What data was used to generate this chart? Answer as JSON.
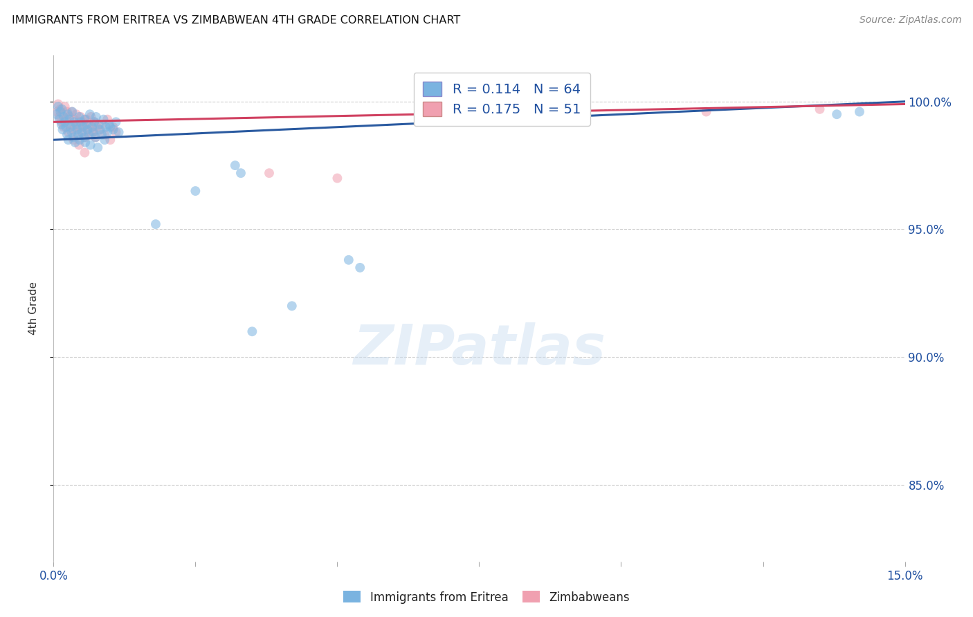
{
  "title": "IMMIGRANTS FROM ERITREA VS ZIMBABWEAN 4TH GRADE CORRELATION CHART",
  "source": "Source: ZipAtlas.com",
  "ylabel": "4th Grade",
  "ytick_values": [
    85.0,
    90.0,
    95.0,
    100.0
  ],
  "xlim": [
    0.0,
    15.0
  ],
  "ylim": [
    82.0,
    101.8
  ],
  "legend1_label": "Immigrants from Eritrea",
  "legend2_label": "Zimbabweans",
  "R_blue": 0.114,
  "N_blue": 64,
  "R_pink": 0.175,
  "N_pink": 51,
  "blue_color": "#7ab3e0",
  "pink_color": "#f0a0b0",
  "blue_line_color": "#2a5aa0",
  "pink_line_color": "#d04060",
  "marker_size": 100,
  "blue_scatter_x": [
    0.05,
    0.08,
    0.1,
    0.12,
    0.14,
    0.15,
    0.16,
    0.18,
    0.2,
    0.22,
    0.24,
    0.25,
    0.26,
    0.28,
    0.3,
    0.32,
    0.33,
    0.35,
    0.36,
    0.38,
    0.4,
    0.42,
    0.44,
    0.45,
    0.46,
    0.48,
    0.5,
    0.52,
    0.54,
    0.55,
    0.56,
    0.58,
    0.6,
    0.62,
    0.64,
    0.65,
    0.68,
    0.7,
    0.72,
    0.74,
    0.75,
    0.78,
    0.8,
    0.82,
    0.85,
    0.88,
    0.9,
    0.92,
    0.95,
    0.98,
    1.0,
    1.05,
    1.1,
    1.15,
    3.2,
    3.3,
    5.2,
    5.4,
    13.8,
    14.2,
    1.8,
    2.5,
    3.5,
    4.2
  ],
  "blue_scatter_y": [
    99.5,
    99.8,
    99.3,
    99.6,
    99.1,
    99.7,
    98.9,
    99.4,
    99.2,
    99.0,
    98.7,
    99.5,
    98.5,
    99.3,
    99.0,
    98.8,
    99.6,
    98.6,
    99.2,
    98.4,
    99.1,
    98.9,
    98.7,
    99.4,
    98.5,
    99.2,
    98.8,
    99.0,
    98.6,
    99.3,
    98.4,
    99.1,
    98.9,
    98.7,
    99.5,
    98.3,
    99.0,
    98.8,
    99.2,
    98.6,
    99.4,
    98.2,
    99.1,
    98.9,
    98.7,
    99.3,
    98.5,
    99.0,
    98.8,
    99.1,
    99.0,
    98.9,
    99.2,
    98.8,
    97.5,
    97.2,
    93.8,
    93.5,
    99.5,
    99.6,
    95.2,
    96.5,
    91.0,
    92.0
  ],
  "pink_scatter_x": [
    0.06,
    0.08,
    0.1,
    0.12,
    0.14,
    0.16,
    0.18,
    0.2,
    0.22,
    0.24,
    0.26,
    0.28,
    0.3,
    0.32,
    0.34,
    0.36,
    0.38,
    0.4,
    0.42,
    0.44,
    0.46,
    0.48,
    0.5,
    0.52,
    0.54,
    0.56,
    0.58,
    0.6,
    0.62,
    0.64,
    0.66,
    0.68,
    0.7,
    0.72,
    0.74,
    0.76,
    0.8,
    0.85,
    0.9,
    0.95,
    1.0,
    1.05,
    1.1,
    3.8,
    5.0,
    8.5,
    11.5,
    13.5,
    0.35,
    0.45,
    0.55
  ],
  "pink_scatter_y": [
    99.6,
    99.9,
    99.4,
    99.7,
    99.2,
    99.5,
    99.0,
    99.8,
    99.3,
    99.6,
    98.8,
    99.4,
    99.1,
    99.6,
    98.9,
    99.3,
    99.0,
    99.5,
    98.7,
    99.2,
    99.0,
    99.4,
    98.8,
    99.2,
    99.0,
    98.6,
    99.3,
    98.9,
    99.1,
    98.7,
    99.4,
    99.0,
    98.8,
    99.2,
    98.6,
    99.0,
    98.9,
    99.1,
    98.7,
    99.3,
    98.5,
    99.0,
    98.8,
    97.2,
    97.0,
    99.5,
    99.6,
    99.7,
    98.5,
    98.3,
    98.0
  ],
  "blue_trendline": [
    98.5,
    100.0
  ],
  "pink_trendline": [
    99.2,
    99.9
  ],
  "watermark_text": "ZIPatlas",
  "grid_color": "#cccccc",
  "bg_color": "#ffffff"
}
